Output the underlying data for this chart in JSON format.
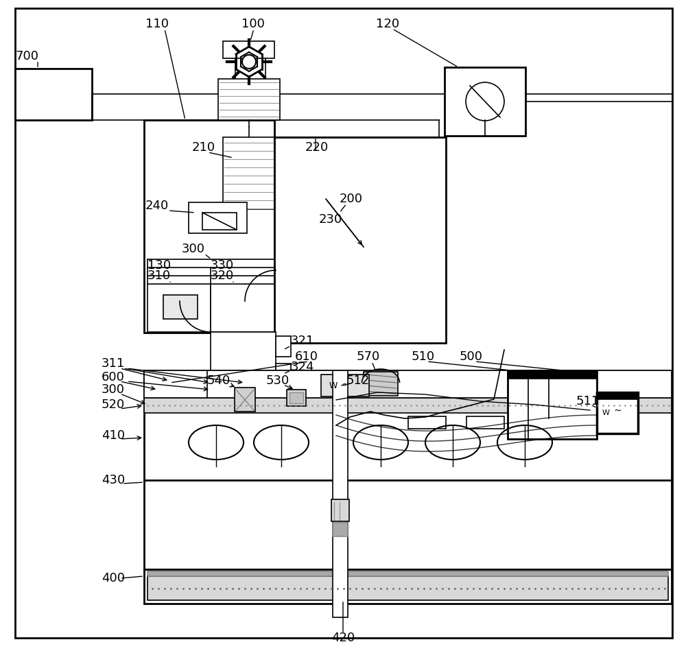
{
  "fig_width": 10.0,
  "fig_height": 9.52,
  "dpi": 100,
  "lc": "#000000",
  "gray1": "#aaaaaa",
  "gray2": "#cccccc",
  "gray3": "#888888",
  "dotgray": "#d0d0d0",
  "label_fs": 13
}
